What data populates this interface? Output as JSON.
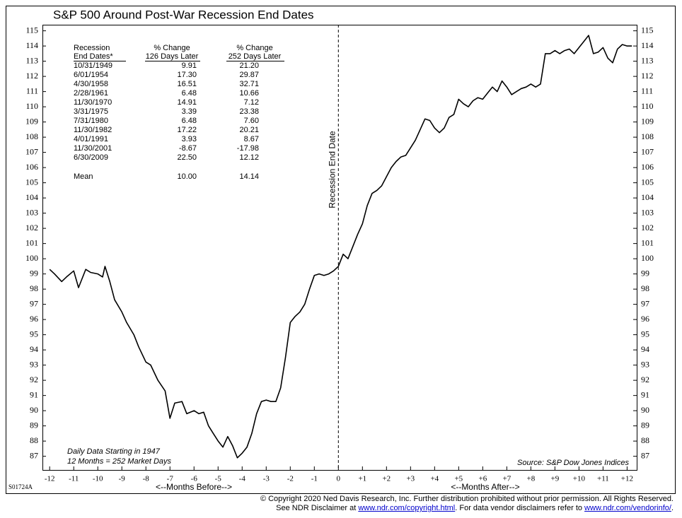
{
  "chart_data": {
    "type": "line",
    "title": "S&P 500 Around Post-War Recession End Dates",
    "code": "S01724A",
    "x_label_before": "<--Months Before-->",
    "x_label_after": "<--Months After-->",
    "vline_label": "Recession End Date",
    "note_lines": [
      "Daily Data Starting in 1947",
      "12 Months = 252 Market Days"
    ],
    "source": "Source: S&P Dow Jones Indices",
    "table": {
      "header": [
        [
          "Recession",
          "End Dates*"
        ],
        [
          "% Change",
          "126 Days Later"
        ],
        [
          "% Change",
          "252 Days Later"
        ]
      ],
      "rows": [
        [
          "10/31/1949",
          "9.91",
          "21.20"
        ],
        [
          "6/01/1954",
          "17.30",
          "29.87"
        ],
        [
          "4/30/1958",
          "16.51",
          "32.71"
        ],
        [
          "2/28/1961",
          "6.48",
          "10.66"
        ],
        [
          "11/30/1970",
          "14.91",
          "7.12"
        ],
        [
          "3/31/1975",
          "3.39",
          "23.38"
        ],
        [
          "7/31/1980",
          "6.48",
          "7.60"
        ],
        [
          "11/30/1982",
          "17.22",
          "20.21"
        ],
        [
          "4/01/1991",
          "3.93",
          "8.67"
        ],
        [
          "11/30/2001",
          "-8.67",
          "-17.98"
        ],
        [
          "6/30/2009",
          "22.50",
          "12.12"
        ]
      ],
      "mean": [
        "Mean",
        "10.00",
        "14.14"
      ]
    },
    "series": [
      {
        "name": "S&P 500",
        "color": "#000000",
        "x": [
          -12,
          -11.8,
          -11.5,
          -11.3,
          -11,
          -10.8,
          -10.5,
          -10.3,
          -10,
          -9.8,
          -9.7,
          -9.5,
          -9.3,
          -9,
          -8.8,
          -8.5,
          -8.3,
          -8,
          -7.8,
          -7.5,
          -7.2,
          -7,
          -6.8,
          -6.5,
          -6.3,
          -6,
          -5.8,
          -5.6,
          -5.4,
          -5.2,
          -5,
          -4.8,
          -4.6,
          -4.4,
          -4.2,
          -4,
          -3.8,
          -3.6,
          -3.4,
          -3.2,
          -3,
          -2.8,
          -2.6,
          -2.4,
          -2.2,
          -2,
          -1.8,
          -1.6,
          -1.4,
          -1.2,
          -1,
          -0.8,
          -0.6,
          -0.4,
          -0.2,
          0,
          0.2,
          0.4,
          0.6,
          0.8,
          1,
          1.2,
          1.4,
          1.6,
          1.8,
          2,
          2.2,
          2.4,
          2.6,
          2.8,
          3,
          3.2,
          3.4,
          3.6,
          3.8,
          4,
          4.2,
          4.4,
          4.6,
          4.8,
          5,
          5.2,
          5.4,
          5.6,
          5.8,
          6,
          6.2,
          6.4,
          6.6,
          6.8,
          7,
          7.2,
          7.4,
          7.6,
          7.8,
          8,
          8.2,
          8.4,
          8.6,
          8.8,
          9,
          9.2,
          9.4,
          9.6,
          9.8,
          10,
          10.2,
          10.4,
          10.6,
          10.8,
          11,
          11.2,
          11.4,
          11.6,
          11.8,
          12,
          12.2
        ],
        "values": [
          99.3,
          99.0,
          98.5,
          98.8,
          99.2,
          98.1,
          99.3,
          99.1,
          99.0,
          98.8,
          99.5,
          98.5,
          97.3,
          96.5,
          95.8,
          95.0,
          94.2,
          93.2,
          93.0,
          92.0,
          91.3,
          89.5,
          90.5,
          90.6,
          89.8,
          90.0,
          89.8,
          89.9,
          89.0,
          88.5,
          88.0,
          87.6,
          88.3,
          87.7,
          86.9,
          87.2,
          87.6,
          88.5,
          89.8,
          90.6,
          90.7,
          90.6,
          90.6,
          91.5,
          93.5,
          95.8,
          96.2,
          96.5,
          97.0,
          98.0,
          98.9,
          99.0,
          98.9,
          99.0,
          99.2,
          99.5,
          100.3,
          100.0,
          100.8,
          101.6,
          102.3,
          103.5,
          104.3,
          104.5,
          104.8,
          105.4,
          106.0,
          106.4,
          106.7,
          106.8,
          107.3,
          107.8,
          108.5,
          109.2,
          109.1,
          108.6,
          108.3,
          108.6,
          109.3,
          109.5,
          110.5,
          110.2,
          110.0,
          110.4,
          110.6,
          110.5,
          110.9,
          111.3,
          111.0,
          111.7,
          111.3,
          110.8,
          111.0,
          111.2,
          111.3,
          111.5,
          111.3,
          111.5,
          113.5,
          113.5,
          113.7,
          113.5,
          113.7,
          113.8,
          113.5,
          113.9,
          114.3,
          114.7,
          113.5,
          113.6,
          113.9,
          113.2,
          112.9,
          113.8,
          114.1,
          114.0,
          114.0
        ]
      }
    ],
    "xlim": [
      -12.3,
      12.4
    ],
    "xticks": [
      -12,
      -11,
      -10,
      -9,
      -8,
      -7,
      -6,
      -5,
      -4,
      -3,
      -2,
      -1,
      0,
      {
        "value": 1,
        "label": "+1"
      },
      {
        "value": 2,
        "label": "+2"
      },
      {
        "value": 3,
        "label": "+3"
      },
      {
        "value": 4,
        "label": "+4"
      },
      {
        "value": 5,
        "label": "+5"
      },
      {
        "value": 6,
        "label": "+6"
      },
      {
        "value": 7,
        "label": "+7"
      },
      {
        "value": 8,
        "label": "+8"
      },
      {
        "value": 9,
        "label": "+9"
      },
      {
        "value": 10,
        "label": "+10"
      },
      {
        "value": 11,
        "label": "+11"
      },
      {
        "value": 12,
        "label": "+12"
      }
    ],
    "ylim": [
      86.1,
      115.4
    ],
    "yticks": [
      87,
      88,
      89,
      90,
      91,
      92,
      93,
      94,
      95,
      96,
      97,
      98,
      99,
      100,
      101,
      102,
      103,
      104,
      105,
      106,
      107,
      108,
      109,
      110,
      111,
      112,
      113,
      114,
      115
    ],
    "vline_x": 0,
    "grid": false
  },
  "footer": {
    "line1": "© Copyright 2020 Ned Davis Research, Inc.  Further distribution prohibited without prior permission.  All Rights Reserved.",
    "line2_a": "See NDR Disclaimer at ",
    "link1": "www.ndr.com/copyright.html",
    "line2_b": ". For data vendor disclaimers refer to ",
    "link2": "www.ndr.com/vendorinfo/",
    "line2_c": "."
  }
}
